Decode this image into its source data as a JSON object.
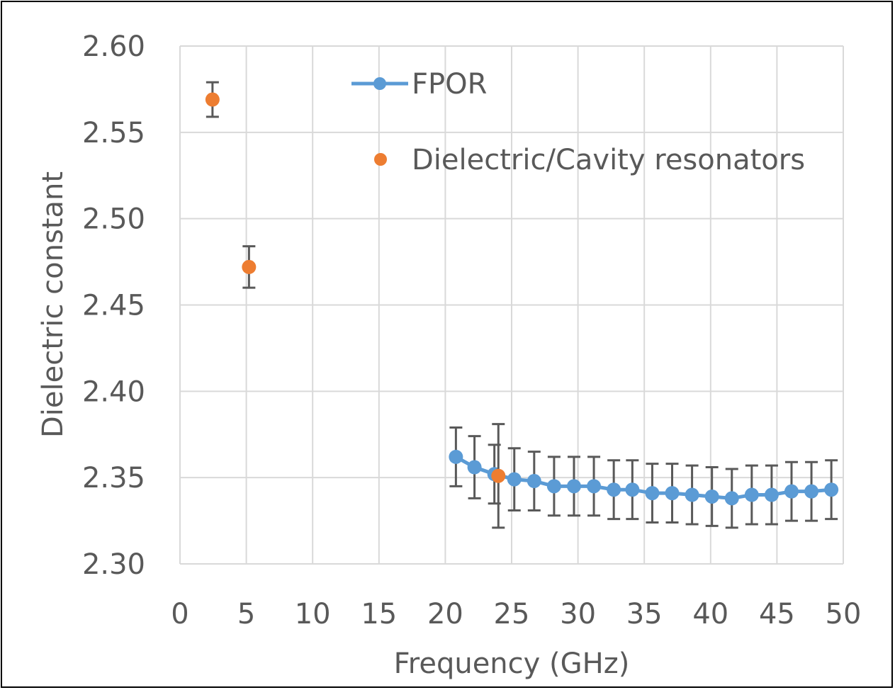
{
  "chart_data": {
    "type": "scatter",
    "title": "",
    "xlabel": "Frequency (GHz)",
    "ylabel": "Dielectric constant",
    "xlim": [
      0,
      50
    ],
    "ylim": [
      2.3,
      2.6
    ],
    "xticks": [
      "0",
      "5",
      "10",
      "15",
      "20",
      "25",
      "30",
      "35",
      "40",
      "45",
      "50"
    ],
    "yticks": [
      "2.30",
      "2.35",
      "2.40",
      "2.45",
      "2.50",
      "2.55",
      "2.60"
    ],
    "grid": true,
    "legend_position": "top-right",
    "series": [
      {
        "name": "FPOR",
        "style": "line-marker",
        "color": "#5B9BD5",
        "x": [
          20.8,
          22.2,
          23.7,
          25.2,
          26.7,
          28.2,
          29.7,
          31.2,
          32.7,
          34.1,
          35.6,
          37.1,
          38.6,
          40.1,
          41.6,
          43.1,
          44.6,
          46.1,
          47.6,
          49.1
        ],
        "y": [
          2.362,
          2.356,
          2.352,
          2.349,
          2.348,
          2.345,
          2.345,
          2.345,
          2.343,
          2.343,
          2.341,
          2.341,
          2.34,
          2.339,
          2.338,
          2.34,
          2.34,
          2.342,
          2.342,
          2.343
        ],
        "err": [
          0.017,
          0.018,
          0.017,
          0.018,
          0.017,
          0.017,
          0.017,
          0.017,
          0.017,
          0.017,
          0.017,
          0.017,
          0.017,
          0.017,
          0.017,
          0.017,
          0.017,
          0.017,
          0.017,
          0.017
        ]
      },
      {
        "name": "Dielectric/Cavity resonators",
        "style": "marker",
        "color": "#ED7D31",
        "x": [
          2.45,
          5.2,
          24.0
        ],
        "y": [
          2.569,
          2.472,
          2.351
        ],
        "err": [
          0.01,
          0.012,
          0.03
        ]
      }
    ]
  }
}
